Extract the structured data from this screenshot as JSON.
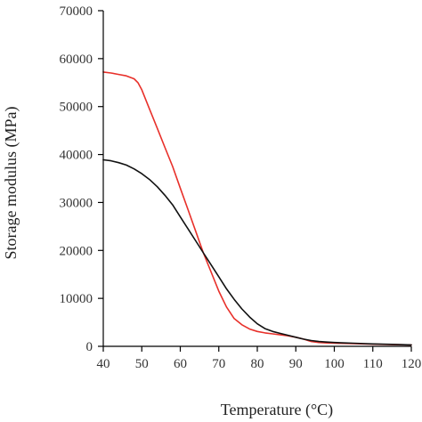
{
  "chart_data": {
    "type": "line",
    "title": "",
    "xlabel": "Temperature (°C)",
    "ylabel": "Storage modulus (MPa)",
    "xlim": [
      40,
      120
    ],
    "ylim": [
      0,
      70000
    ],
    "x_ticks": [
      40,
      50,
      60,
      70,
      80,
      90,
      100,
      110,
      120
    ],
    "y_ticks": [
      0,
      10000,
      20000,
      30000,
      40000,
      50000,
      60000,
      70000
    ],
    "grid": false,
    "series": [
      {
        "color": "#e8302a",
        "x": [
          40,
          42,
          44,
          46,
          48,
          49,
          50,
          52,
          54,
          56,
          58,
          60,
          62,
          64,
          66,
          68,
          70,
          72,
          74,
          76,
          78,
          80,
          82,
          84,
          86,
          88,
          90,
          92,
          94,
          96,
          98,
          100,
          105,
          110,
          115,
          120
        ],
        "y": [
          57200,
          57000,
          56700,
          56400,
          55800,
          55000,
          53500,
          49500,
          45500,
          41500,
          37500,
          33000,
          28500,
          24000,
          19500,
          15500,
          11500,
          8200,
          5800,
          4500,
          3600,
          3100,
          2800,
          2600,
          2400,
          2200,
          1900,
          1500,
          1000,
          800,
          700,
          650,
          550,
          450,
          350,
          300
        ]
      },
      {
        "color": "#111111",
        "x": [
          40,
          42,
          44,
          46,
          48,
          50,
          52,
          54,
          56,
          58,
          60,
          62,
          64,
          66,
          68,
          70,
          72,
          74,
          76,
          78,
          80,
          82,
          84,
          86,
          88,
          90,
          92,
          94,
          96,
          98,
          100,
          105,
          110,
          115,
          120
        ],
        "y": [
          38900,
          38700,
          38300,
          37800,
          37000,
          36000,
          34800,
          33300,
          31500,
          29500,
          27000,
          24500,
          22000,
          19500,
          17000,
          14500,
          12000,
          9800,
          7800,
          6100,
          4700,
          3700,
          3100,
          2700,
          2300,
          1900,
          1500,
          1200,
          1000,
          900,
          800,
          650,
          500,
          400,
          300
        ]
      }
    ]
  }
}
